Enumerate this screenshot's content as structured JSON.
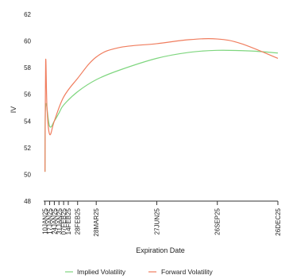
{
  "chart_data": {
    "type": "line",
    "title": "",
    "xlabel": "Expiration Date",
    "ylabel": "IV",
    "ylim": [
      48,
      62
    ],
    "yticks": [
      48,
      50,
      52,
      54,
      56,
      58,
      60,
      62
    ],
    "xlim": [
      "2025-01-08",
      "2025-12-26"
    ],
    "xticks": [
      {
        "date": "2025-01-10",
        "label": "10JAN25"
      },
      {
        "date": "2025-01-17",
        "label": "17JAN25"
      },
      {
        "date": "2025-01-24",
        "label": "24JAN25"
      },
      {
        "date": "2025-01-31",
        "label": "31JAN25"
      },
      {
        "date": "2025-02-07",
        "label": "07FEB25"
      },
      {
        "date": "2025-02-14",
        "label": "14FEB25"
      },
      {
        "date": "2025-02-28",
        "label": "28FEB25"
      },
      {
        "date": "2025-03-28",
        "label": "28MAR25"
      },
      {
        "date": "2025-06-27",
        "label": "27JUN25"
      },
      {
        "date": "2025-09-26",
        "label": "26SEP25"
      },
      {
        "date": "2025-12-26",
        "label": "26DEC25"
      }
    ],
    "grid": false,
    "legend": "bottom-center",
    "series": [
      {
        "name": "Implied Volatility",
        "color": "#7fd67f",
        "points": [
          {
            "x": "2025-01-10",
            "y": 50.2
          },
          {
            "x": "2025-01-11",
            "y": 55.2
          },
          {
            "x": "2025-01-17",
            "y": 53.6
          },
          {
            "x": "2025-01-24",
            "y": 54.0
          },
          {
            "x": "2025-01-31",
            "y": 54.6
          },
          {
            "x": "2025-02-07",
            "y": 55.2
          },
          {
            "x": "2025-02-28",
            "y": 56.2
          },
          {
            "x": "2025-03-28",
            "y": 57.1
          },
          {
            "x": "2025-05-01",
            "y": 57.8
          },
          {
            "x": "2025-06-27",
            "y": 58.7
          },
          {
            "x": "2025-08-15",
            "y": 59.15
          },
          {
            "x": "2025-09-26",
            "y": 59.3
          },
          {
            "x": "2025-11-15",
            "y": 59.25
          },
          {
            "x": "2025-12-26",
            "y": 59.1
          }
        ]
      },
      {
        "name": "Forward Volatility",
        "color": "#f07d5e",
        "points": [
          {
            "x": "2025-01-10",
            "y": 50.2
          },
          {
            "x": "2025-01-11",
            "y": 58.5
          },
          {
            "x": "2025-01-13",
            "y": 55.0
          },
          {
            "x": "2025-01-17",
            "y": 53.0
          },
          {
            "x": "2025-01-24",
            "y": 54.0
          },
          {
            "x": "2025-02-07",
            "y": 55.8
          },
          {
            "x": "2025-02-28",
            "y": 57.2
          },
          {
            "x": "2025-03-28",
            "y": 58.8
          },
          {
            "x": "2025-05-01",
            "y": 59.5
          },
          {
            "x": "2025-06-27",
            "y": 59.8
          },
          {
            "x": "2025-08-15",
            "y": 60.1
          },
          {
            "x": "2025-09-26",
            "y": 60.15
          },
          {
            "x": "2025-11-01",
            "y": 59.8
          },
          {
            "x": "2025-12-26",
            "y": 58.7
          }
        ]
      }
    ]
  }
}
